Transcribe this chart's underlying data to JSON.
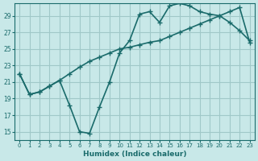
{
  "xlabel": "Humidex (Indice chaleur)",
  "ylabel": "",
  "bg_color": "#c8e8e8",
  "line_color": "#1a6b6b",
  "grid_color": "#a0c8c8",
  "xlim": [
    -0.5,
    23.5
  ],
  "ylim": [
    14,
    30.5
  ],
  "yticks": [
    15,
    17,
    19,
    21,
    23,
    25,
    27,
    29
  ],
  "xticks": [
    0,
    1,
    2,
    3,
    4,
    5,
    6,
    7,
    8,
    9,
    10,
    11,
    12,
    13,
    14,
    15,
    16,
    17,
    18,
    19,
    20,
    21,
    22,
    23
  ],
  "curve1_x": [
    0,
    1,
    2,
    3,
    4,
    5,
    6,
    7,
    8,
    9,
    10,
    11,
    12,
    13,
    14,
    15,
    16,
    17,
    18,
    19,
    20,
    21,
    22,
    23
  ],
  "curve1_y": [
    22.0,
    19.5,
    19.8,
    20.5,
    21.2,
    18.2,
    15.0,
    14.8,
    18.0,
    21.0,
    24.5,
    26.0,
    29.2,
    29.5,
    28.2,
    30.2,
    30.5,
    30.2,
    29.5,
    29.2,
    29.0,
    28.2,
    27.2,
    26.0
  ],
  "curve2_x": [
    0,
    1,
    2,
    3,
    4,
    5,
    6,
    7,
    8,
    9,
    10,
    11,
    12,
    13,
    14,
    15,
    16,
    17,
    18,
    19,
    20,
    21,
    22,
    23
  ],
  "curve2_y": [
    22.0,
    19.5,
    19.8,
    20.5,
    21.2,
    22.0,
    22.8,
    23.5,
    24.0,
    24.5,
    25.0,
    25.2,
    25.5,
    25.8,
    26.0,
    26.5,
    27.0,
    27.5,
    28.0,
    28.5,
    29.0,
    29.5,
    30.0,
    25.8
  ]
}
